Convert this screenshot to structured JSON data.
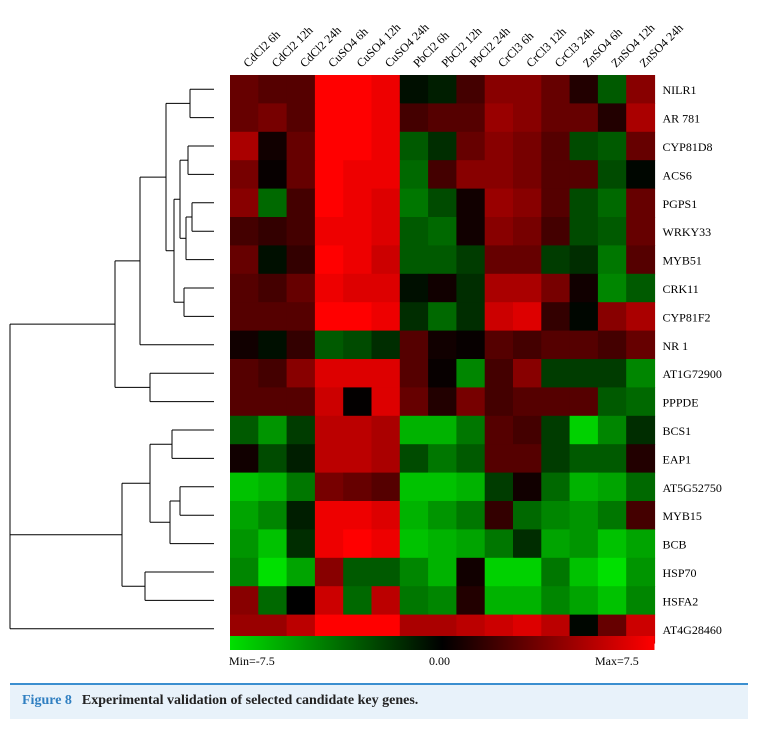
{
  "figure": {
    "label": "Figure 8",
    "caption": "Experimental validation of selected candidate key genes."
  },
  "colors": {
    "low": "#00e000",
    "mid": "#000000",
    "high": "#ff0000",
    "caption_bg": "#e8f2fa",
    "caption_border": "#3b8fd0",
    "figure_label": "#2f7fc1"
  },
  "chart_data": {
    "type": "heatmap",
    "columns": [
      "CdCl2 6h",
      "CdCl2 12h",
      "CdCl2 24h",
      "CuSO4 6h",
      "CuSO4 12h",
      "CuSO4 24h",
      "PbCl2 6h",
      "PbCl2 12h",
      "PbCl2 24h",
      "CrCl3 6h",
      "CrCl3 12h",
      "CrCl3 24h",
      "ZnSO4 6h",
      "ZnSO4 12h",
      "ZnSO4 24h"
    ],
    "rows": [
      "NILR1",
      "AR 781",
      "CYP81D8",
      "ACS6",
      "PGPS1",
      "WRKY33",
      "MYB51",
      "CRK11",
      "CYP81F2",
      "NR 1",
      "AT1G72900",
      "PPPDE",
      "BCS1",
      "EAP1",
      "AT5G52750",
      "MYB15",
      "BCB",
      "HSP70",
      "HSFA2",
      "AT4G28460"
    ],
    "values": [
      [
        3.0,
        2.5,
        2.5,
        7.5,
        7.5,
        7.0,
        -0.5,
        -1.0,
        2.0,
        4.0,
        4.0,
        3.0,
        1.0,
        -3.0,
        4.0
      ],
      [
        3.0,
        3.5,
        2.5,
        7.5,
        7.5,
        7.0,
        2.0,
        2.5,
        2.5,
        4.5,
        4.0,
        3.0,
        3.0,
        1.0,
        5.0
      ],
      [
        5.0,
        0.5,
        3.0,
        7.5,
        7.5,
        7.0,
        -3.0,
        -1.5,
        3.0,
        4.0,
        3.5,
        2.5,
        -2.5,
        -3.0,
        3.0
      ],
      [
        3.5,
        0.2,
        3.0,
        7.5,
        7.0,
        7.0,
        -3.5,
        2.0,
        4.0,
        4.0,
        3.5,
        2.5,
        2.5,
        -2.5,
        -0.2
      ],
      [
        4.0,
        -3.5,
        2.0,
        7.5,
        7.0,
        6.5,
        -4.0,
        -2.5,
        0.5,
        4.5,
        4.0,
        2.5,
        -2.5,
        -3.5,
        3.0
      ],
      [
        2.0,
        1.5,
        2.0,
        7.0,
        7.0,
        6.5,
        -3.0,
        -3.5,
        0.5,
        4.0,
        3.5,
        2.0,
        -2.5,
        -3.0,
        3.0
      ],
      [
        3.0,
        -0.5,
        1.5,
        7.5,
        7.0,
        6.0,
        -3.0,
        -3.0,
        -2.0,
        3.0,
        3.0,
        -2.0,
        -1.5,
        -4.0,
        2.5
      ],
      [
        2.5,
        2.0,
        3.0,
        7.0,
        6.5,
        6.5,
        -0.5,
        0.5,
        -1.5,
        5.0,
        5.0,
        3.5,
        0.5,
        -4.5,
        -3.0
      ],
      [
        2.5,
        2.5,
        2.5,
        7.5,
        7.5,
        7.0,
        -1.5,
        -3.5,
        -1.5,
        6.0,
        6.5,
        1.5,
        -0.2,
        4.0,
        5.0
      ],
      [
        0.5,
        -0.5,
        1.5,
        -3.0,
        -2.5,
        -1.5,
        2.5,
        0.5,
        0.2,
        2.5,
        2.0,
        2.5,
        2.5,
        2.0,
        3.0
      ],
      [
        2.5,
        2.0,
        4.0,
        6.5,
        6.5,
        6.5,
        2.5,
        0.2,
        -4.5,
        2.0,
        4.0,
        -2.0,
        -2.0,
        -2.0,
        -4.5
      ],
      [
        2.5,
        2.5,
        2.5,
        6.0,
        0.1,
        6.5,
        3.0,
        1.0,
        3.5,
        2.0,
        2.5,
        2.5,
        2.5,
        -3.0,
        -3.5
      ],
      [
        -3.0,
        -5.0,
        -2.0,
        5.5,
        5.5,
        5.0,
        -6.0,
        -6.0,
        -4.0,
        2.5,
        2.0,
        -2.0,
        -7.0,
        -4.5,
        -1.5
      ],
      [
        0.5,
        -2.5,
        -1.0,
        5.5,
        5.5,
        5.0,
        -2.5,
        -4.0,
        -3.0,
        2.5,
        2.5,
        -2.0,
        -3.0,
        -3.0,
        1.0
      ],
      [
        -6.5,
        -6.0,
        -4.0,
        3.5,
        3.0,
        2.5,
        -6.5,
        -6.5,
        -6.0,
        -2.0,
        0.5,
        -3.5,
        -6.0,
        -5.5,
        -3.5
      ],
      [
        -5.5,
        -4.5,
        -1.0,
        7.0,
        7.0,
        6.5,
        -6.0,
        -5.0,
        -4.0,
        1.5,
        -3.5,
        -4.5,
        -5.0,
        -4.0,
        2.0
      ],
      [
        -5.0,
        -6.5,
        -1.5,
        7.0,
        7.5,
        7.0,
        -6.5,
        -6.0,
        -5.5,
        -4.0,
        -1.5,
        -5.5,
        -5.0,
        -6.5,
        -5.5
      ],
      [
        -4.5,
        -7.5,
        -5.5,
        4.0,
        -3.0,
        -3.0,
        -4.5,
        -6.0,
        0.5,
        -7.0,
        -7.0,
        -4.0,
        -6.5,
        -7.5,
        -5.0
      ],
      [
        4.0,
        -3.5,
        0.0,
        6.0,
        -3.5,
        5.5,
        -4.0,
        -4.5,
        1.0,
        -6.0,
        -6.0,
        -4.5,
        -5.5,
        -6.5,
        -4.5
      ],
      [
        4.5,
        4.5,
        5.5,
        7.5,
        7.5,
        7.5,
        5.0,
        5.0,
        5.5,
        6.0,
        6.5,
        5.5,
        -0.2,
        3.0,
        6.0
      ]
    ],
    "scale": {
      "min": -7.5,
      "max": 7.5
    },
    "colorbar_labels": {
      "min": "Min=-7.5",
      "mid": "0.00",
      "max": "Max=7.5"
    },
    "row_dendrogram": "hierarchical clustering tree on left"
  }
}
